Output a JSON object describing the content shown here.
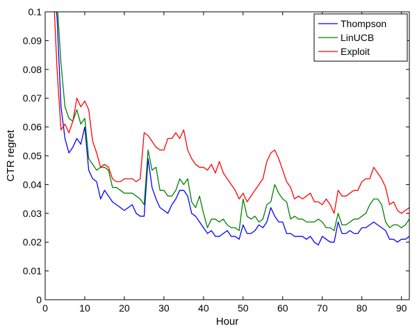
{
  "chart_data": {
    "type": "line",
    "title": "",
    "xlabel": "Hour",
    "ylabel": "CTR regret",
    "xlim": [
      0,
      92
    ],
    "ylim": [
      0,
      0.1
    ],
    "xticks": [
      0,
      10,
      20,
      30,
      40,
      50,
      60,
      70,
      80,
      90
    ],
    "yticks": [
      0,
      0.01,
      0.02,
      0.03,
      0.04,
      0.05,
      0.06,
      0.07,
      0.08,
      0.09,
      0.1
    ],
    "ytick_labels": [
      "0",
      "0.01",
      "0.02",
      "0.03",
      "0.04",
      "0.05",
      "0.06",
      "0.07",
      "0.08",
      "0.09",
      "0.1"
    ],
    "grid": false,
    "legend_position": "top-right",
    "x": [
      2,
      3,
      4,
      5,
      6,
      7,
      8,
      9,
      10,
      11,
      12,
      13,
      14,
      15,
      16,
      17,
      18,
      19,
      20,
      21,
      22,
      23,
      24,
      25,
      26,
      27,
      28,
      29,
      30,
      31,
      32,
      33,
      34,
      35,
      36,
      37,
      38,
      39,
      40,
      41,
      42,
      43,
      44,
      45,
      46,
      47,
      48,
      49,
      50,
      51,
      52,
      53,
      54,
      55,
      56,
      57,
      58,
      59,
      60,
      61,
      62,
      63,
      64,
      65,
      66,
      67,
      68,
      69,
      70,
      71,
      72,
      73,
      74,
      75,
      76,
      77,
      78,
      79,
      80,
      81,
      82,
      83,
      84,
      85,
      86,
      87,
      88,
      89,
      90,
      91,
      92
    ],
    "series": [
      {
        "name": "Thompson",
        "color": "#0000ff",
        "values": [
          0.11,
          0.098,
          0.067,
          0.056,
          0.051,
          0.053,
          0.056,
          0.054,
          0.06,
          0.045,
          0.042,
          0.041,
          0.035,
          0.038,
          0.036,
          0.034,
          0.033,
          0.032,
          0.031,
          0.032,
          0.033,
          0.03,
          0.029,
          0.029,
          0.049,
          0.039,
          0.035,
          0.032,
          0.031,
          0.03,
          0.033,
          0.035,
          0.038,
          0.038,
          0.036,
          0.03,
          0.029,
          0.027,
          0.025,
          0.023,
          0.024,
          0.022,
          0.022,
          0.023,
          0.024,
          0.022,
          0.022,
          0.021,
          0.026,
          0.023,
          0.023,
          0.024,
          0.026,
          0.025,
          0.027,
          0.032,
          0.029,
          0.027,
          0.027,
          0.023,
          0.023,
          0.022,
          0.022,
          0.022,
          0.021,
          0.022,
          0.02,
          0.019,
          0.022,
          0.021,
          0.02,
          0.02,
          0.027,
          0.023,
          0.023,
          0.024,
          0.023,
          0.023,
          0.025,
          0.025,
          0.026,
          0.027,
          0.026,
          0.025,
          0.024,
          0.021,
          0.021,
          0.02,
          0.021,
          0.021,
          0.022
        ]
      },
      {
        "name": "LinUCB",
        "color": "#007f00",
        "values": [
          0.11,
          0.104,
          0.082,
          0.067,
          0.063,
          0.062,
          0.066,
          0.061,
          0.063,
          0.049,
          0.047,
          0.045,
          0.046,
          0.046,
          0.045,
          0.039,
          0.039,
          0.038,
          0.037,
          0.037,
          0.037,
          0.036,
          0.035,
          0.033,
          0.052,
          0.045,
          0.046,
          0.038,
          0.038,
          0.036,
          0.036,
          0.038,
          0.042,
          0.04,
          0.042,
          0.034,
          0.032,
          0.036,
          0.03,
          0.025,
          0.028,
          0.028,
          0.027,
          0.028,
          0.026,
          0.025,
          0.025,
          0.024,
          0.035,
          0.029,
          0.028,
          0.029,
          0.027,
          0.028,
          0.033,
          0.034,
          0.04,
          0.037,
          0.035,
          0.034,
          0.028,
          0.029,
          0.028,
          0.028,
          0.027,
          0.027,
          0.027,
          0.028,
          0.027,
          0.025,
          0.025,
          0.024,
          0.03,
          0.026,
          0.026,
          0.027,
          0.028,
          0.028,
          0.029,
          0.03,
          0.033,
          0.035,
          0.035,
          0.033,
          0.027,
          0.025,
          0.026,
          0.026,
          0.025,
          0.026,
          0.028
        ]
      },
      {
        "name": "Exploit",
        "color": "#ff0000",
        "values": [
          0.11,
          0.08,
          0.059,
          0.061,
          0.058,
          0.062,
          0.07,
          0.067,
          0.069,
          0.066,
          0.055,
          0.051,
          0.046,
          0.047,
          0.046,
          0.042,
          0.041,
          0.041,
          0.042,
          0.042,
          0.042,
          0.041,
          0.042,
          0.058,
          0.057,
          0.055,
          0.053,
          0.052,
          0.052,
          0.056,
          0.056,
          0.058,
          0.056,
          0.059,
          0.052,
          0.049,
          0.047,
          0.046,
          0.046,
          0.045,
          0.047,
          0.044,
          0.048,
          0.044,
          0.042,
          0.04,
          0.038,
          0.035,
          0.037,
          0.034,
          0.036,
          0.038,
          0.04,
          0.042,
          0.048,
          0.051,
          0.052,
          0.049,
          0.045,
          0.041,
          0.039,
          0.035,
          0.036,
          0.035,
          0.036,
          0.037,
          0.034,
          0.034,
          0.033,
          0.035,
          0.033,
          0.03,
          0.038,
          0.036,
          0.036,
          0.037,
          0.038,
          0.038,
          0.041,
          0.042,
          0.042,
          0.046,
          0.044,
          0.042,
          0.039,
          0.033,
          0.034,
          0.031,
          0.03,
          0.031,
          0.032
        ]
      }
    ]
  }
}
